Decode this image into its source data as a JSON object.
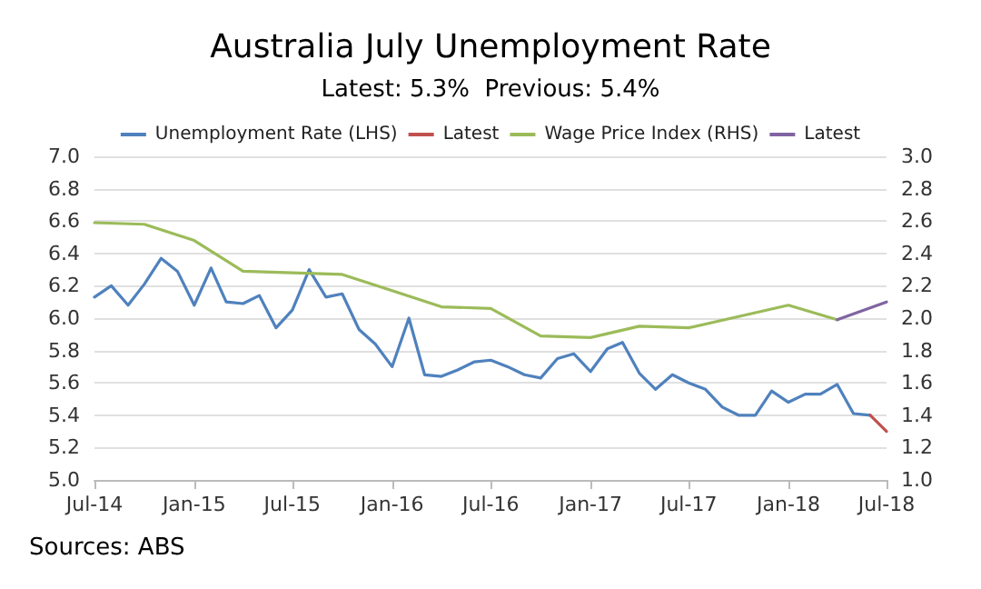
{
  "chart_data": {
    "type": "line",
    "title": "Australia July Unemployment Rate",
    "subtitle": "Latest: 5.3%  Previous: 5.4%",
    "annotations": [
      "Sources: ABS"
    ],
    "series": [
      {
        "name": "Unemployment Rate (LHS)",
        "color": "#4f81bd",
        "x": [
          "2014-07",
          "2014-08",
          "2014-09",
          "2014-10",
          "2014-11",
          "2014-12",
          "2015-01",
          "2015-02",
          "2015-03",
          "2015-04",
          "2015-05",
          "2015-06",
          "2015-07",
          "2015-08",
          "2015-09",
          "2015-10",
          "2015-11",
          "2015-12",
          "2016-01",
          "2016-02",
          "2016-03",
          "2016-04",
          "2016-05",
          "2016-06",
          "2016-07",
          "2016-08",
          "2016-09",
          "2016-10",
          "2016-11",
          "2016-12",
          "2017-01",
          "2017-02",
          "2017-03",
          "2017-04",
          "2017-05",
          "2017-06",
          "2017-07",
          "2017-08",
          "2017-09",
          "2017-10",
          "2017-11",
          "2017-12",
          "2018-01",
          "2018-02",
          "2018-03",
          "2018-04",
          "2018-05",
          "2018-06"
        ],
        "values": [
          6.13,
          6.2,
          6.08,
          6.21,
          6.37,
          6.29,
          6.08,
          6.31,
          6.1,
          6.09,
          6.14,
          5.94,
          6.05,
          6.3,
          6.13,
          6.15,
          5.93,
          5.84,
          5.7,
          6.0,
          5.65,
          5.64,
          5.68,
          5.73,
          5.74,
          5.7,
          5.65,
          5.63,
          5.75,
          5.78,
          5.67,
          5.81,
          5.85,
          5.66,
          5.56,
          5.65,
          5.6,
          5.56,
          5.45,
          5.4,
          5.4,
          5.55,
          5.48,
          5.53,
          5.53,
          5.59,
          5.41,
          5.4
        ]
      },
      {
        "name": "Latest",
        "color": "#c0504d",
        "x": [
          "2018-06",
          "2018-07"
        ],
        "values": [
          5.4,
          5.3
        ]
      },
      {
        "name": "Wage Price Index (RHS)",
        "color": "#9bbb59",
        "axis": "y2",
        "x": [
          "2014-07",
          "2014-10",
          "2015-01",
          "2015-04",
          "2015-07",
          "2015-10",
          "2016-01",
          "2016-04",
          "2016-07",
          "2016-10",
          "2017-01",
          "2017-04",
          "2017-07",
          "2017-10",
          "2018-01",
          "2018-04"
        ],
        "values": [
          2.59,
          2.58,
          2.48,
          2.29,
          2.28,
          2.27,
          2.17,
          2.07,
          2.06,
          1.89,
          1.88,
          1.95,
          1.94,
          2.01,
          2.08,
          1.99
        ]
      },
      {
        "name": "Latest",
        "color": "#8064a2",
        "axis": "y2",
        "x": [
          "2018-04",
          "2018-07"
        ],
        "values": [
          1.99,
          2.1
        ]
      }
    ],
    "xlim": [
      "2014-07",
      "2018-07"
    ],
    "xticks": [
      {
        "value": "2014-07",
        "label": "Jul-14"
      },
      {
        "value": "2015-01",
        "label": "Jan-15"
      },
      {
        "value": "2015-07",
        "label": "Jul-15"
      },
      {
        "value": "2016-01",
        "label": "Jan-16"
      },
      {
        "value": "2016-07",
        "label": "Jul-16"
      },
      {
        "value": "2017-01",
        "label": "Jan-17"
      },
      {
        "value": "2017-07",
        "label": "Jul-17"
      },
      {
        "value": "2018-01",
        "label": "Jan-18"
      },
      {
        "value": "2018-07",
        "label": "Jul-18"
      }
    ],
    "ylim": [
      5.0,
      7.0
    ],
    "yticks": [
      {
        "value": 5,
        "label": "5.0"
      },
      5.2,
      5.4,
      5.6,
      5.8,
      {
        "value": 6,
        "label": "6.0"
      },
      6.2,
      6.4,
      6.6,
      6.8,
      {
        "value": 7,
        "label": "7.0"
      }
    ],
    "y2lim": [
      1.0,
      3.0
    ],
    "y2ticks": [
      {
        "value": 1,
        "label": "1.0"
      },
      1.2,
      1.4,
      1.6,
      1.8,
      {
        "value": 2,
        "label": "2.0"
      },
      2.2,
      2.4,
      2.6,
      2.8,
      {
        "value": 3,
        "label": "3.0"
      }
    ],
    "grid": "y",
    "legend": "top",
    "marker": "none",
    "line_style": "solid"
  }
}
